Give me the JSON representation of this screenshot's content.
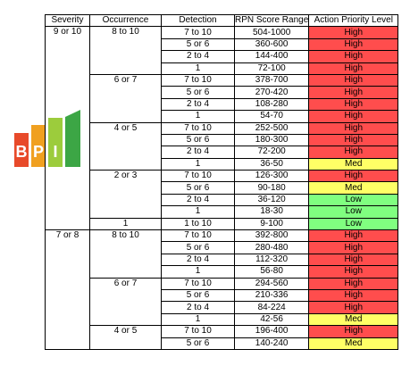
{
  "logo": {
    "text": "BPI",
    "colors": [
      "#e84a2a",
      "#f0a020",
      "#9ccc3c",
      "#3ca645"
    ]
  },
  "colors": {
    "High": "#ff4d4d",
    "Med": "#ffff66",
    "Low": "#80ff80"
  },
  "table": {
    "headers": [
      "Severity",
      "Occurrence",
      "Detection",
      "RPN Score Range",
      "Action Priority Level"
    ],
    "severity_groups": [
      {
        "severity": "9 or 10",
        "occurrences": [
          {
            "occurrence": "8 to 10",
            "rows": [
              {
                "detection": "7 to 10",
                "rpn": "504-1000",
                "ap": "High"
              },
              {
                "detection": "5 or 6",
                "rpn": "360-600",
                "ap": "High"
              },
              {
                "detection": "2 to 4",
                "rpn": "144-400",
                "ap": "High"
              },
              {
                "detection": "1",
                "rpn": "72-100",
                "ap": "High"
              }
            ]
          },
          {
            "occurrence": "6 or 7",
            "rows": [
              {
                "detection": "7 to 10",
                "rpn": "378-700",
                "ap": "High"
              },
              {
                "detection": "5 or 6",
                "rpn": "270-420",
                "ap": "High"
              },
              {
                "detection": "2 to 4",
                "rpn": "108-280",
                "ap": "High"
              },
              {
                "detection": "1",
                "rpn": "54-70",
                "ap": "High"
              }
            ]
          },
          {
            "occurrence": "4 or 5",
            "rows": [
              {
                "detection": "7 to 10",
                "rpn": "252-500",
                "ap": "High"
              },
              {
                "detection": "5 or 6",
                "rpn": "180-300",
                "ap": "High"
              },
              {
                "detection": "2 to 4",
                "rpn": "72-200",
                "ap": "High"
              },
              {
                "detection": "1",
                "rpn": "36-50",
                "ap": "Med"
              }
            ]
          },
          {
            "occurrence": "2 or 3",
            "rows": [
              {
                "detection": "7 to 10",
                "rpn": "126-300",
                "ap": "High"
              },
              {
                "detection": "5 or 6",
                "rpn": "90-180",
                "ap": "Med"
              },
              {
                "detection": "2 to 4",
                "rpn": "36-120",
                "ap": "Low"
              },
              {
                "detection": "1",
                "rpn": "18-30",
                "ap": "Low"
              }
            ]
          },
          {
            "occurrence": "1",
            "rows": [
              {
                "detection": "1 to 10",
                "rpn": "9-100",
                "ap": "Low"
              }
            ]
          }
        ]
      },
      {
        "severity": "7 or 8",
        "occurrences": [
          {
            "occurrence": "8 to 10",
            "rows": [
              {
                "detection": "7 to 10",
                "rpn": "392-800",
                "ap": "High"
              },
              {
                "detection": "5 or 6",
                "rpn": "280-480",
                "ap": "High"
              },
              {
                "detection": "2 to 4",
                "rpn": "112-320",
                "ap": "High"
              },
              {
                "detection": "1",
                "rpn": "56-80",
                "ap": "High"
              }
            ]
          },
          {
            "occurrence": "6 or 7",
            "rows": [
              {
                "detection": "7 to 10",
                "rpn": "294-560",
                "ap": "High"
              },
              {
                "detection": "5 or 6",
                "rpn": "210-336",
                "ap": "High"
              },
              {
                "detection": "2 to 4",
                "rpn": "84-224",
                "ap": "High"
              },
              {
                "detection": "1",
                "rpn": "42-56",
                "ap": "Med"
              }
            ]
          },
          {
            "occurrence": "4 or 5",
            "rows": [
              {
                "detection": "7 to 10",
                "rpn": "196-400",
                "ap": "High"
              },
              {
                "detection": "5 or 6",
                "rpn": "140-240",
                "ap": "Med"
              }
            ]
          }
        ]
      }
    ]
  }
}
